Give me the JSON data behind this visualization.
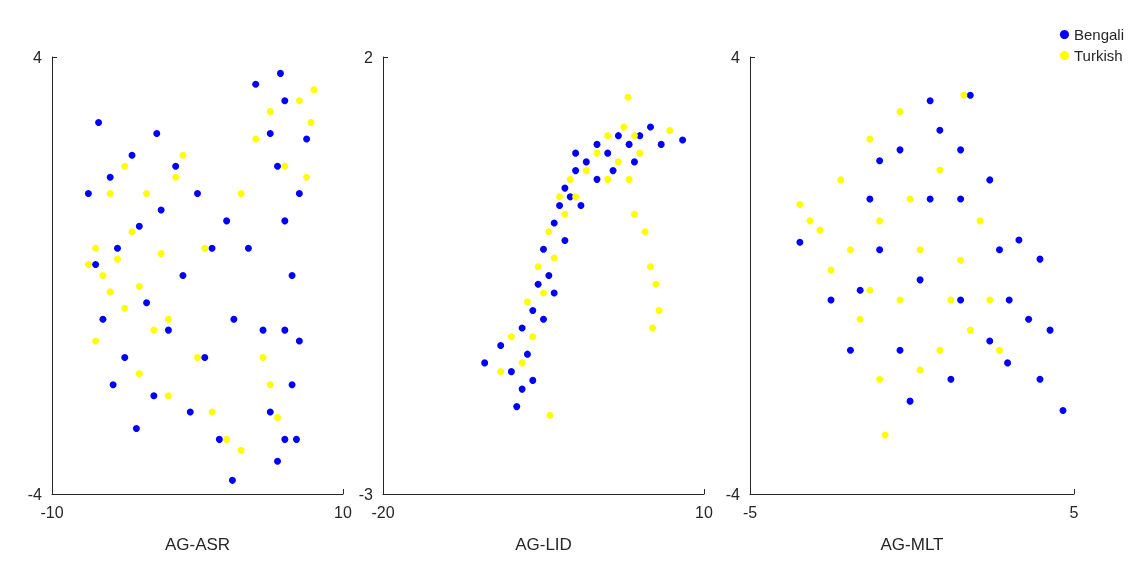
{
  "chart_data": [
    {
      "type": "scatter",
      "xlabel": "AG-ASR",
      "xlim": [
        -10,
        10
      ],
      "xticks": [
        -10,
        10
      ],
      "ylim": [
        -4,
        4
      ],
      "yticks": [
        -4,
        4
      ],
      "marker": "circle",
      "grid": false,
      "legend": "top right",
      "series": [
        {
          "name": "Bengali",
          "color": "#0000ff",
          "x": [
            -7.5,
            -7,
            -6.5,
            -6,
            -5.5,
            -5,
            -4.5,
            -4,
            -3.5,
            -3,
            -2.5,
            -2,
            -1.5,
            -1,
            -0.5,
            0,
            0.5,
            1,
            -6.8,
            -5.8,
            -4.2,
            -2.8,
            1.5,
            2,
            2.5,
            4,
            5,
            6,
            5.7,
            5.5,
            6,
            6.5,
            6,
            6.5,
            6,
            5.5,
            5,
            7,
            7,
            6.8,
            4.5,
            3.5,
            7.5,
            2.4
          ],
          "values": [
            1.5,
            0.2,
            -0.8,
            1.8,
            0.5,
            -1.5,
            2.2,
            0.9,
            -0.5,
            -2.2,
            1.2,
            -1,
            2,
            0,
            -2.5,
            1.5,
            -1.5,
            0.5,
            2.8,
            -2,
            -2.8,
            2.6,
            -3,
            1,
            -0.8,
            3.5,
            2.6,
            3.2,
            3.7,
            2,
            1,
            0,
            -1,
            -2,
            -3,
            -3.4,
            -2.5,
            1.5,
            -1.2,
            -3,
            -1,
            0.5,
            2.5,
            -3.75
          ]
        },
        {
          "name": "Turkish",
          "color": "#ffff00",
          "x": [
            -7.5,
            -7,
            -6.5,
            -6,
            -5.5,
            -5,
            -4.5,
            -4,
            -3.5,
            -3,
            -2.5,
            -2,
            -1.5,
            -1,
            -6,
            -5,
            -7,
            -4,
            -2,
            0,
            1,
            2,
            3,
            4,
            5,
            6,
            7,
            7.8,
            8,
            7.5,
            5,
            5.5,
            4.5,
            3,
            0.5
          ],
          "values": [
            0.2,
            0.5,
            0,
            -0.3,
            0.3,
            -0.6,
            0.8,
            -0.2,
            1.5,
            -1,
            0.4,
            -0.8,
            1.8,
            2.2,
            1.5,
            2,
            -1.2,
            -1.8,
            -2.2,
            -1.5,
            -2.5,
            -3,
            1.5,
            2.5,
            3,
            2,
            3.2,
            2.8,
            3.4,
            1.8,
            -2,
            -2.6,
            -1.5,
            -3.2,
            0.5
          ]
        }
      ]
    },
    {
      "type": "scatter",
      "xlabel": "AG-LID",
      "xlim": [
        -20,
        10
      ],
      "xticks": [
        -20,
        10
      ],
      "ylim": [
        -3,
        2
      ],
      "yticks": [
        -3,
        2
      ],
      "marker": "circle",
      "grid": false,
      "legend": "top right",
      "series": [
        {
          "name": "Bengali",
          "color": "#0000ff",
          "x": [
            -10.5,
            -9,
            -8,
            -7.5,
            -7,
            -7,
            -6.5,
            -6,
            -6,
            -5.5,
            -5,
            -5,
            -4.5,
            -4,
            -4,
            -3.5,
            -3,
            -3,
            -2.5,
            -2,
            -1.5,
            -1,
            0,
            0,
            1,
            1.5,
            2,
            3,
            3.5,
            4,
            5,
            6,
            8,
            -2
          ],
          "values": [
            -1.5,
            -1.3,
            -1.6,
            -2,
            -1.8,
            -1.1,
            -1.4,
            -0.9,
            -1.7,
            -0.6,
            -1,
            -0.2,
            -0.5,
            0.1,
            -0.7,
            0.3,
            -0.1,
            0.5,
            0.4,
            0.7,
            0.3,
            0.8,
            0.6,
            1,
            0.9,
            0.7,
            1.1,
            1,
            0.8,
            1.1,
            1.2,
            1,
            1.05,
            0.9
          ]
        },
        {
          "name": "Turkish",
          "color": "#ffff00",
          "x": [
            -9,
            -8,
            -7,
            -6.5,
            -6,
            -5.5,
            -5,
            -4.5,
            -4,
            -3.5,
            -3,
            -2.5,
            -2,
            -1,
            0,
            1,
            1,
            2,
            2.5,
            3,
            3.5,
            4,
            2.9,
            3.5,
            4.5,
            5,
            5.5,
            5.8,
            5.2,
            6.8,
            -4.4
          ],
          "values": [
            -1.6,
            -1.2,
            -1.5,
            -0.8,
            -1.2,
            -0.4,
            -0.7,
            0,
            -0.3,
            0.4,
            0.2,
            0.6,
            0.4,
            0.7,
            0.9,
            0.6,
            1.1,
            0.8,
            1.2,
            0.6,
            1.1,
            0.9,
            1.54,
            0.2,
            0,
            -0.4,
            -0.6,
            -0.9,
            -1.1,
            1.16,
            -2.1
          ]
        }
      ]
    },
    {
      "type": "scatter",
      "xlabel": "AG-MLT",
      "xlim": [
        -5,
        5
      ],
      "xticks": [
        -5,
        5
      ],
      "ylim": [
        -4,
        4
      ],
      "yticks": [
        -4,
        4
      ],
      "marker": "circle",
      "grid": false,
      "legend": "top right",
      "series": [
        {
          "name": "Bengali",
          "color": "#0000ff",
          "x": [
            -3.46,
            -2.5,
            -1.3,
            -0.37,
            0.56,
            0.86,
            1.5,
            1.8,
            2.4,
            2.7,
            3.0,
            3.6,
            4.26,
            4.66,
            3.95,
            2.95,
            1.5,
            0.25,
            -0.37,
            -1,
            -1.9,
            1.2,
            -0.06,
            0.56,
            1.5,
            3.3,
            -1,
            2.4,
            3.95,
            -1.6
          ],
          "values": [
            0.61,
            -0.45,
            1.4,
            2.3,
            3.2,
            2.66,
            1.4,
            3.3,
            1.75,
            0.47,
            -0.45,
            -0.8,
            -1,
            -2.47,
            -1.9,
            -1.6,
            -0.45,
            -0.08,
            -1.37,
            0.47,
            -1.37,
            -1.9,
            -2.3,
            1.4,
            2.3,
            0.65,
            2.1,
            -1.2,
            0.3,
            -0.27
          ]
        },
        {
          "name": "Turkish",
          "color": "#ffff00",
          "x": [
            -3.46,
            -2.84,
            -2.2,
            -1.9,
            -1.3,
            -1,
            -0.37,
            -1.6,
            -1,
            -0.83,
            -0.37,
            0.25,
            0.86,
            1.6,
            1.5,
            1.8,
            2.4,
            2.7,
            0.86,
            -0.06,
            -2.5,
            -3.15,
            -1.3,
            1.2,
            0.25,
            2.1
          ],
          "values": [
            1.3,
            0.83,
            1.75,
            0.47,
            2.5,
            1.0,
            3.0,
            -0.8,
            -1.9,
            -2.92,
            -0.45,
            0.47,
            1.93,
            3.3,
            0.28,
            -1,
            -0.45,
            -1.37,
            -1.37,
            1.4,
            0.1,
            1.0,
            -0.27,
            -0.45,
            -1.73,
            1.0
          ]
        }
      ]
    }
  ]
}
